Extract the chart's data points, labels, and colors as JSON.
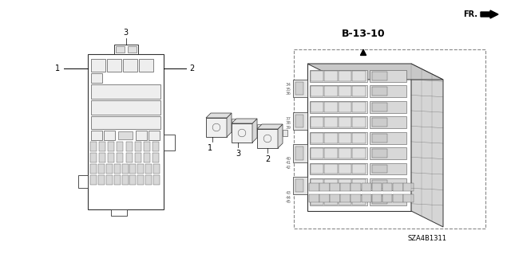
{
  "bg_color": "#ffffff",
  "title_text": "B-13-10",
  "part_number": "SZA4B1311",
  "fr_label": "FR.",
  "line_color": "#555555",
  "dark_color": "#333333",
  "fig_w": 6.4,
  "fig_h": 3.19,
  "dpi": 100
}
